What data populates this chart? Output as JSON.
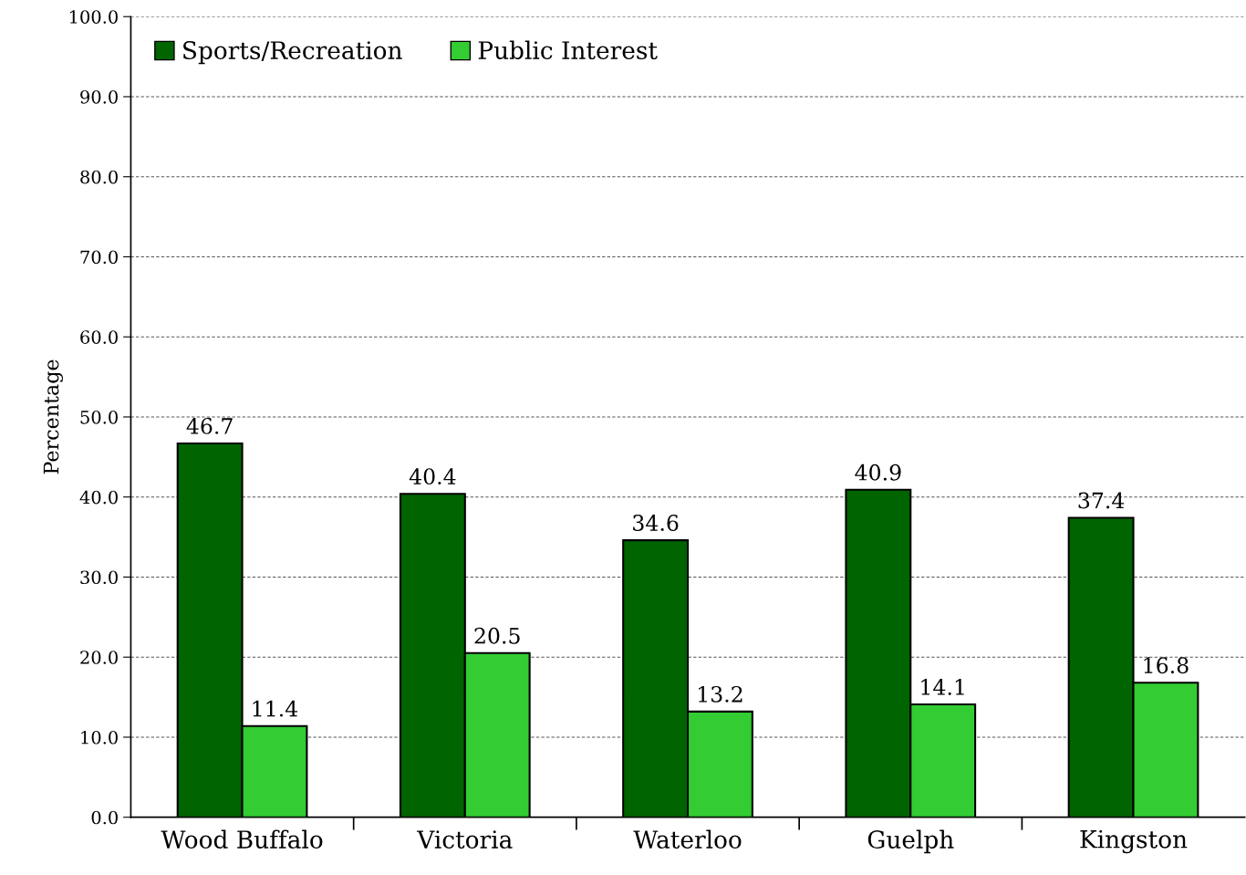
{
  "chart_data": {
    "type": "bar",
    "ylabel": "Percentage",
    "categories": [
      "Wood Buffalo",
      "Victoria",
      "Waterloo",
      "Guelph",
      "Kingston"
    ],
    "series": [
      {
        "name": "Sports/Recreation",
        "color": "#006400",
        "values": [
          46.7,
          40.4,
          34.6,
          40.9,
          37.4
        ]
      },
      {
        "name": "Public Interest",
        "color": "#33cc33",
        "values": [
          11.4,
          20.5,
          13.2,
          14.1,
          16.8
        ]
      }
    ],
    "ylim": [
      0,
      100
    ],
    "yticks": [
      {
        "value": 0,
        "label": "0.0"
      },
      {
        "value": 10,
        "label": "10.0"
      },
      {
        "value": 20,
        "label": "20.0"
      },
      {
        "value": 30,
        "label": "30.0"
      },
      {
        "value": 40,
        "label": "40.0"
      },
      {
        "value": 50,
        "label": "50.0"
      },
      {
        "value": 60,
        "label": "60.0"
      },
      {
        "value": 70,
        "label": "70.0"
      },
      {
        "value": 80,
        "label": "80.0"
      },
      {
        "value": 90,
        "label": "90.0"
      },
      {
        "value": 100,
        "label": "100.0"
      }
    ],
    "grid": "y",
    "legend": "top left",
    "data_labels": true
  }
}
